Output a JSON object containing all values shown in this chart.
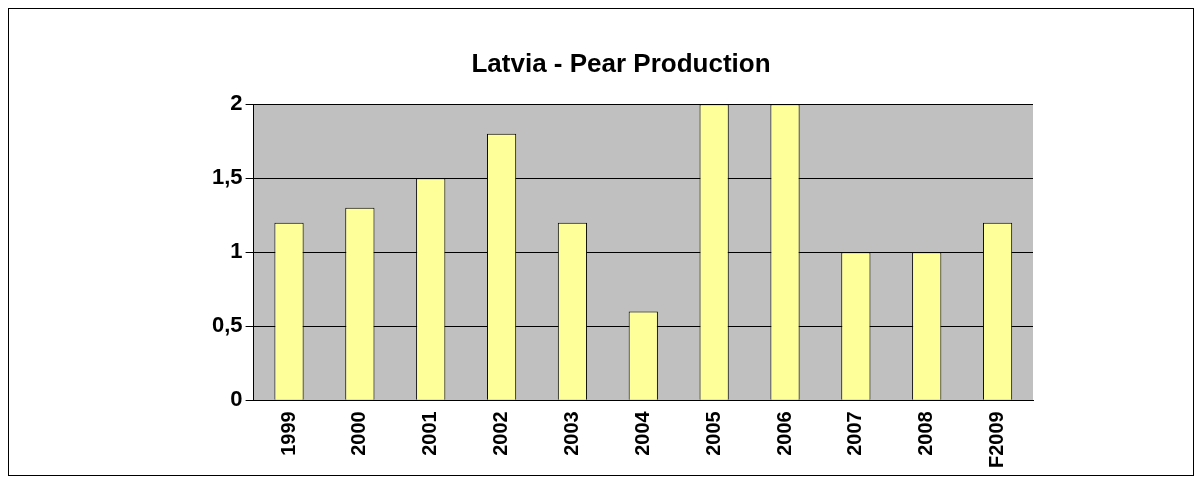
{
  "chart_data": {
    "type": "bar",
    "title": "Latvia - Pear Production",
    "categories": [
      "1999",
      "2000",
      "2001",
      "2002",
      "2003",
      "2004",
      "2005",
      "2006",
      "2007",
      "2008",
      "F2009"
    ],
    "values": [
      1.2,
      1.3,
      1.5,
      1.8,
      1.2,
      0.6,
      2.0,
      2.0,
      1.0,
      1.0,
      1.2
    ],
    "color": "#ffff99",
    "ylim": [
      0,
      2
    ],
    "yticks": [
      0,
      {
        "value": 0.5,
        "label": "0,5"
      },
      1,
      {
        "value": 1.5,
        "label": "1,5"
      },
      2
    ],
    "grid": "y",
    "legend": false
  }
}
